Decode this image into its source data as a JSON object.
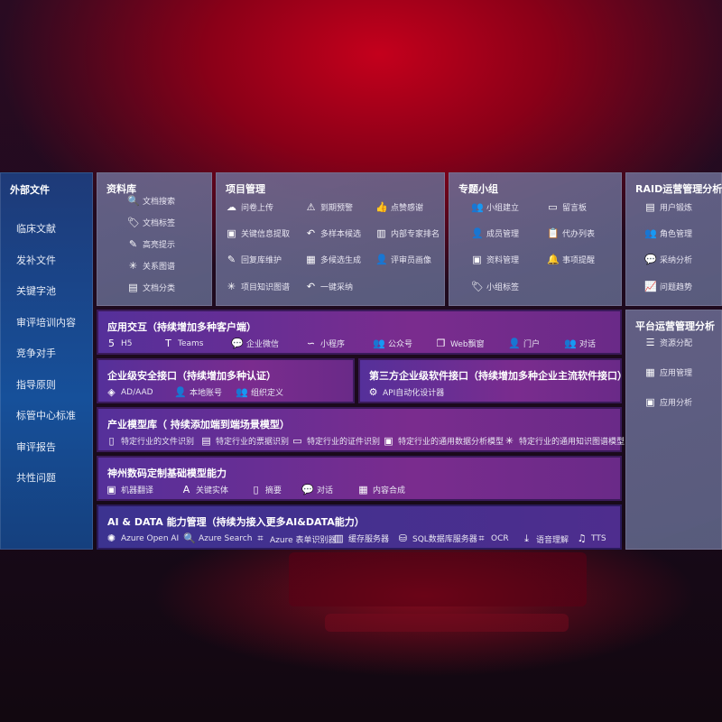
{
  "sidebar": {
    "title": "外部文件",
    "items": [
      "临床文献",
      "发补文件",
      "关键字池",
      "审评培训内容",
      "竞争对手",
      "指导原则",
      "标管中心标准",
      "审评报告",
      "共性问题"
    ]
  },
  "library": {
    "title": "资料库",
    "items": [
      {
        "icon": "document-search-icon",
        "g": "🔍",
        "label": "文档搜索"
      },
      {
        "icon": "tag-icon",
        "g": "🏷",
        "label": "文档标签"
      },
      {
        "icon": "pen-icon",
        "g": "✎",
        "label": "高亮提示"
      },
      {
        "icon": "graph-icon",
        "g": "✳",
        "label": "关系图谱"
      },
      {
        "icon": "classify-icon",
        "g": "▤",
        "label": "文档分类"
      }
    ]
  },
  "project": {
    "title": "项目管理",
    "items": [
      {
        "icon": "cloud-upload-icon",
        "g": "☁",
        "label": "问卷上传"
      },
      {
        "icon": "alarm-icon",
        "g": "⚠",
        "label": "到期预警"
      },
      {
        "icon": "thumbs-up-icon",
        "g": "👍",
        "label": "点赞感谢"
      },
      {
        "icon": "extract-icon",
        "g": "▣",
        "label": "关键信息提取"
      },
      {
        "icon": "reply-icon",
        "g": "↶",
        "label": "多样本候选"
      },
      {
        "icon": "ranking-icon",
        "g": "▥",
        "label": "内部专家排名"
      },
      {
        "icon": "edit-icon",
        "g": "✎",
        "label": "回复库维护"
      },
      {
        "icon": "puzzle-icon",
        "g": "▦",
        "label": "多候选生成"
      },
      {
        "icon": "person-icon",
        "g": "👤",
        "label": "评审员画像"
      },
      {
        "icon": "knowledge-graph-icon",
        "g": "✳",
        "label": "项目知识图谱"
      },
      {
        "icon": "reply-icon",
        "g": "↶",
        "label": "一键采纳"
      }
    ]
  },
  "topic": {
    "title": "专题小组",
    "items": [
      {
        "icon": "group-icon",
        "g": "👥",
        "label": "小组建立"
      },
      {
        "icon": "bbs-icon",
        "g": "▭",
        "label": "留言板"
      },
      {
        "icon": "member-icon",
        "g": "👤",
        "label": "成员管理"
      },
      {
        "icon": "clipboard-icon",
        "g": "📋",
        "label": "代办列表"
      },
      {
        "icon": "folder-icon",
        "g": "▣",
        "label": "资料管理"
      },
      {
        "icon": "bell-icon",
        "g": "🔔",
        "label": "事项提醒"
      },
      {
        "icon": "tag-icon",
        "g": "🏷",
        "label": "小组标签"
      }
    ]
  },
  "raid": {
    "title": "RAID运营管理分析",
    "items": [
      {
        "icon": "id-card-icon",
        "g": "▤",
        "label": "用户锻炼"
      },
      {
        "icon": "users-icon",
        "g": "👥",
        "label": "角色管理"
      },
      {
        "icon": "qa-icon",
        "g": "💬",
        "label": "采纳分析"
      },
      {
        "icon": "trend-icon",
        "g": "📈",
        "label": "问题趋势"
      }
    ]
  },
  "platform": {
    "title": "平台运营管理分析",
    "items": [
      {
        "icon": "list-icon",
        "g": "☰",
        "label": "资源分配"
      },
      {
        "icon": "apps-icon",
        "g": "▦",
        "label": "应用管理"
      },
      {
        "icon": "analysis-icon",
        "g": "▣",
        "label": "应用分析"
      }
    ]
  },
  "app": {
    "title": "应用交互（持续增加多种客户端）",
    "items": [
      {
        "icon": "html5-icon",
        "g": "5",
        "label": "H5"
      },
      {
        "icon": "teams-icon",
        "g": "T",
        "label": "Teams"
      },
      {
        "icon": "wechat-icon",
        "g": "💬",
        "label": "企业微信"
      },
      {
        "icon": "miniprogram-icon",
        "g": "∽",
        "label": "小程序"
      },
      {
        "icon": "official-account-icon",
        "g": "👥",
        "label": "公众号"
      },
      {
        "icon": "window-icon",
        "g": "❐",
        "label": "Web飘窗"
      },
      {
        "icon": "portal-icon",
        "g": "👤",
        "label": "门户"
      },
      {
        "icon": "chat-icon",
        "g": "👥",
        "label": "对话"
      }
    ]
  },
  "security": {
    "title": "企业级安全接口（持续增加多种认证）",
    "items": [
      {
        "icon": "ad-icon",
        "g": "◈",
        "label": "AD/AAD"
      },
      {
        "icon": "local-account-icon",
        "g": "👤",
        "label": "本地账号"
      },
      {
        "icon": "org-icon",
        "g": "👥",
        "label": "组织定义"
      }
    ]
  },
  "thirdparty": {
    "title": "第三方企业级软件接口（持续增加多种企业主流软件接口）",
    "items": [
      {
        "icon": "api-gear-icon",
        "g": "⚙",
        "label": "API自动化设计器"
      }
    ]
  },
  "industry": {
    "title": "产业模型库（ 持续添加端到端场景模型）",
    "items": [
      {
        "icon": "file-icon",
        "g": "▯",
        "label": "特定行业的文件识别"
      },
      {
        "icon": "receipt-icon",
        "g": "▤",
        "label": "特定行业的票据识别"
      },
      {
        "icon": "id-card-icon",
        "g": "▭",
        "label": "特定行业的证件识别"
      },
      {
        "icon": "chart-icon",
        "g": "▣",
        "label": "特定行业的通用数据分析模型"
      },
      {
        "icon": "knowledge-graph-icon",
        "g": "✳",
        "label": "特定行业的通用知识图谱模型"
      }
    ]
  },
  "shenzhou": {
    "title": "神州数码定制基础模型能力",
    "items": [
      {
        "icon": "translate-icon",
        "g": "▣",
        "label": "机器翻译"
      },
      {
        "icon": "entity-icon",
        "g": "A",
        "label": "关键实体"
      },
      {
        "icon": "summary-icon",
        "g": "▯",
        "label": "摘要"
      },
      {
        "icon": "chat-icon",
        "g": "💬",
        "label": "对话"
      },
      {
        "icon": "compose-icon",
        "g": "▦",
        "label": "内容合成"
      }
    ]
  },
  "aidata": {
    "title": "AI & DATA 能力管理（持续为接入更多AI&DATA能力）",
    "items": [
      {
        "icon": "openai-icon",
        "g": "✺",
        "label": "Azure Open AI"
      },
      {
        "icon": "search-icon",
        "g": "🔍",
        "label": "Azure Search"
      },
      {
        "icon": "form-recognizer-icon",
        "g": "⌗",
        "label": "Azure 表单识别器"
      },
      {
        "icon": "cache-server-icon",
        "g": "▥",
        "label": "缓存服务器"
      },
      {
        "icon": "sql-icon",
        "g": "⛁",
        "label": "SQL数据库服务器"
      },
      {
        "icon": "ocr-icon",
        "g": "⌗",
        "label": "OCR"
      },
      {
        "icon": "speech-icon",
        "g": "⤓",
        "label": "语音理解"
      },
      {
        "icon": "tts-icon",
        "g": "♫",
        "label": "TTS"
      }
    ]
  }
}
